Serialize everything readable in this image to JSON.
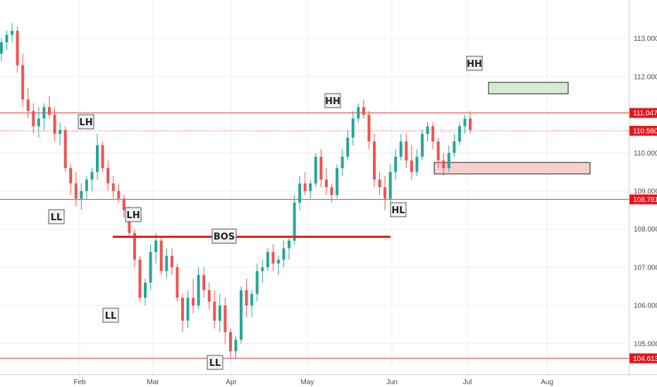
{
  "colors": {
    "up": "#26a69a",
    "down": "#ef5350",
    "level_line": "#e53935",
    "bos_line": "#e0201b",
    "demand_fill": "#f8cfcf",
    "target_fill": "#d9ead3",
    "grid": "#eeeeee",
    "axis_text": "#4a4a4a",
    "tag_bg": "#e8141c"
  },
  "chart_data": {
    "type": "candlestick",
    "y_axis": {
      "ticks": [
        "113.000",
        "112.000",
        "111.000",
        "110.000",
        "109.000",
        "108.000",
        "107.000",
        "106.000",
        "105.000"
      ],
      "range": [
        104.2,
        113.9
      ]
    },
    "x_axis": {
      "ticks": [
        "Feb",
        "Mar",
        "Apr",
        "May",
        "Jun",
        "Jul",
        "Aug"
      ]
    },
    "levels": [
      {
        "label": "111.047",
        "value": 111.047,
        "style": "solid"
      },
      {
        "label": "110.580",
        "value": 110.58,
        "style": "dotted"
      },
      {
        "label": "108.781",
        "value": 108.781,
        "style": "solid"
      },
      {
        "label": "104.613",
        "value": 104.613,
        "style": "solid"
      }
    ],
    "bos": {
      "label": "BOS",
      "value": 107.8
    },
    "zones": [
      {
        "name": "target",
        "top": 111.85,
        "bottom": 111.55
      },
      {
        "name": "demand",
        "top": 109.75,
        "bottom": 109.45
      }
    ],
    "swing_labels": [
      "LH",
      "LL",
      "LH",
      "LL",
      "LL",
      "HH",
      "HL",
      "HH"
    ],
    "candles": [
      [
        112.6,
        113.0,
        112.4,
        112.9
      ],
      [
        112.9,
        113.2,
        112.7,
        113.1
      ],
      [
        113.1,
        113.4,
        112.9,
        113.2
      ],
      [
        113.2,
        113.3,
        112.1,
        112.3
      ],
      [
        112.3,
        112.6,
        111.2,
        111.4
      ],
      [
        111.4,
        111.7,
        110.9,
        111.1
      ],
      [
        111.1,
        111.3,
        110.5,
        110.7
      ],
      [
        110.7,
        111.2,
        110.4,
        110.9
      ],
      [
        110.9,
        111.3,
        110.6,
        111.2
      ],
      [
        111.2,
        111.5,
        110.9,
        111.0
      ],
      [
        111.0,
        111.2,
        110.3,
        110.5
      ],
      [
        110.5,
        110.8,
        110.2,
        110.6
      ],
      [
        110.6,
        110.7,
        109.5,
        109.6
      ],
      [
        109.6,
        109.7,
        108.9,
        109.2
      ],
      [
        109.2,
        109.5,
        108.6,
        108.8
      ],
      [
        108.8,
        109.2,
        108.5,
        109.0
      ],
      [
        109.0,
        109.4,
        108.8,
        109.3
      ],
      [
        109.3,
        109.6,
        109.0,
        109.5
      ],
      [
        109.5,
        110.5,
        109.3,
        110.2
      ],
      [
        110.2,
        110.3,
        109.5,
        109.6
      ],
      [
        109.6,
        109.8,
        109.0,
        109.2
      ],
      [
        109.2,
        109.4,
        108.8,
        109.0
      ],
      [
        109.0,
        109.2,
        108.7,
        108.8
      ],
      [
        108.8,
        108.9,
        108.3,
        108.5
      ],
      [
        108.5,
        108.6,
        107.8,
        107.9
      ],
      [
        107.9,
        108.0,
        107.0,
        107.2
      ],
      [
        107.2,
        107.3,
        106.1,
        106.2
      ],
      [
        106.2,
        106.7,
        106.0,
        106.6
      ],
      [
        106.6,
        107.6,
        106.4,
        107.4
      ],
      [
        107.4,
        107.9,
        107.1,
        107.7
      ],
      [
        107.7,
        107.8,
        106.8,
        106.9
      ],
      [
        106.9,
        107.5,
        106.7,
        107.3
      ],
      [
        107.3,
        107.5,
        106.8,
        107.0
      ],
      [
        107.0,
        107.1,
        106.1,
        106.2
      ],
      [
        106.2,
        106.3,
        105.3,
        105.6
      ],
      [
        105.6,
        106.4,
        105.4,
        106.2
      ],
      [
        106.2,
        106.7,
        105.8,
        106.0
      ],
      [
        106.0,
        107.0,
        105.9,
        106.8
      ],
      [
        106.8,
        107.0,
        106.2,
        106.4
      ],
      [
        106.4,
        106.6,
        105.9,
        106.1
      ],
      [
        106.1,
        106.4,
        105.4,
        105.6
      ],
      [
        105.6,
        106.3,
        105.3,
        106.0
      ],
      [
        106.0,
        106.2,
        105.0,
        105.3
      ],
      [
        105.3,
        105.4,
        104.6,
        104.8
      ],
      [
        104.8,
        105.2,
        104.6,
        105.1
      ],
      [
        105.1,
        106.5,
        105.0,
        106.4
      ],
      [
        106.4,
        106.7,
        105.7,
        106.0
      ],
      [
        106.0,
        106.4,
        105.7,
        106.3
      ],
      [
        106.3,
        107.1,
        106.1,
        106.9
      ],
      [
        106.9,
        107.2,
        106.6,
        107.0
      ],
      [
        107.0,
        107.5,
        106.9,
        107.4
      ],
      [
        107.4,
        107.6,
        106.9,
        107.1
      ],
      [
        107.1,
        107.3,
        106.8,
        107.2
      ],
      [
        107.2,
        107.7,
        107.0,
        107.5
      ],
      [
        107.5,
        107.8,
        107.2,
        107.7
      ],
      [
        107.7,
        108.9,
        107.6,
        108.7
      ],
      [
        108.7,
        109.4,
        108.5,
        109.2
      ],
      [
        109.2,
        109.5,
        108.9,
        109.0
      ],
      [
        109.0,
        109.3,
        108.8,
        109.2
      ],
      [
        109.2,
        110.0,
        109.1,
        109.9
      ],
      [
        109.9,
        110.1,
        109.1,
        109.3
      ],
      [
        109.3,
        109.6,
        108.9,
        109.1
      ],
      [
        109.1,
        109.2,
        108.7,
        108.9
      ],
      [
        108.9,
        109.7,
        108.8,
        109.6
      ],
      [
        109.6,
        110.1,
        109.4,
        109.9
      ],
      [
        109.9,
        110.6,
        109.8,
        110.4
      ],
      [
        110.4,
        111.1,
        110.2,
        110.9
      ],
      [
        110.9,
        111.3,
        110.8,
        111.2
      ],
      [
        111.2,
        111.4,
        110.9,
        111.0
      ],
      [
        111.0,
        111.1,
        110.1,
        110.3
      ],
      [
        110.3,
        110.5,
        109.1,
        109.3
      ],
      [
        109.3,
        109.5,
        108.9,
        109.1
      ],
      [
        109.1,
        109.4,
        108.5,
        108.8
      ],
      [
        108.8,
        109.7,
        108.7,
        109.5
      ],
      [
        109.5,
        110.1,
        109.3,
        109.9
      ],
      [
        109.9,
        110.5,
        109.8,
        110.3
      ],
      [
        110.3,
        110.5,
        109.6,
        109.8
      ],
      [
        109.8,
        110.2,
        109.3,
        109.5
      ],
      [
        109.5,
        110.1,
        109.4,
        109.9
      ],
      [
        109.9,
        110.6,
        109.8,
        110.5
      ],
      [
        110.5,
        110.8,
        110.3,
        110.7
      ],
      [
        110.7,
        110.8,
        110.1,
        110.3
      ],
      [
        110.3,
        110.4,
        109.6,
        109.8
      ],
      [
        109.8,
        110.0,
        109.4,
        109.6
      ],
      [
        109.6,
        110.2,
        109.5,
        110.0
      ],
      [
        110.0,
        110.5,
        109.9,
        110.3
      ],
      [
        110.3,
        110.8,
        110.2,
        110.7
      ],
      [
        110.7,
        111.0,
        110.5,
        110.9
      ],
      [
        110.9,
        111.1,
        110.5,
        110.6
      ]
    ]
  }
}
